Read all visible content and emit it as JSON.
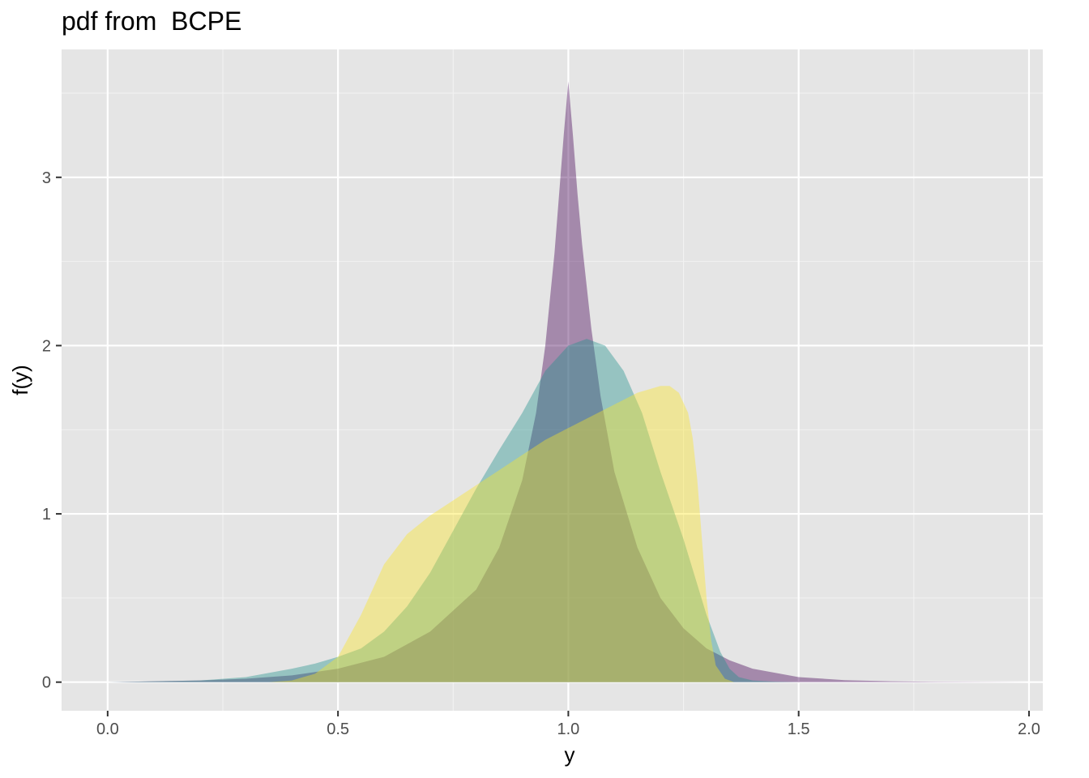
{
  "chart_data": {
    "type": "area",
    "title": "pdf from  BCPE",
    "xlabel": "y",
    "ylabel": "f(y)",
    "xlim": [
      -0.1,
      2.03
    ],
    "ylim": [
      -0.17,
      3.76
    ],
    "x_ticks": [
      0.0,
      0.5,
      1.0,
      1.5,
      2.0
    ],
    "x_tick_labels": [
      "0.0",
      "0.5",
      "1.0",
      "1.5",
      "2.0"
    ],
    "y_ticks": [
      0,
      1,
      2,
      3
    ],
    "y_tick_labels": [
      "0",
      "1",
      "2",
      "3"
    ],
    "grid": true,
    "legend": "none",
    "series": [
      {
        "color": "#440154",
        "opacity": 0.4,
        "x": [
          0.0,
          0.1,
          0.2,
          0.3,
          0.4,
          0.5,
          0.6,
          0.7,
          0.8,
          0.85,
          0.9,
          0.93,
          0.95,
          0.97,
          0.98,
          0.99,
          1.0,
          1.01,
          1.02,
          1.03,
          1.05,
          1.07,
          1.1,
          1.15,
          1.2,
          1.25,
          1.3,
          1.35,
          1.4,
          1.5,
          1.6,
          1.7,
          1.8,
          1.9,
          2.0
        ],
        "y": [
          0,
          0.005,
          0.01,
          0.02,
          0.04,
          0.08,
          0.15,
          0.3,
          0.55,
          0.8,
          1.2,
          1.6,
          2.0,
          2.55,
          2.9,
          3.25,
          3.57,
          3.25,
          2.9,
          2.6,
          2.1,
          1.7,
          1.25,
          0.8,
          0.5,
          0.32,
          0.2,
          0.13,
          0.08,
          0.03,
          0.012,
          0.005,
          0.002,
          0.001,
          0
        ]
      },
      {
        "color": "#21908C",
        "opacity": 0.4,
        "x": [
          0.0,
          0.2,
          0.3,
          0.4,
          0.45,
          0.5,
          0.55,
          0.6,
          0.65,
          0.7,
          0.75,
          0.8,
          0.85,
          0.9,
          0.95,
          1.0,
          1.04,
          1.08,
          1.12,
          1.16,
          1.2,
          1.25,
          1.3,
          1.33,
          1.35,
          1.37,
          1.4,
          1.45,
          1.5
        ],
        "y": [
          0,
          0.01,
          0.03,
          0.08,
          0.11,
          0.15,
          0.2,
          0.3,
          0.45,
          0.65,
          0.9,
          1.15,
          1.38,
          1.6,
          1.85,
          2.0,
          2.04,
          2.0,
          1.85,
          1.6,
          1.25,
          0.85,
          0.4,
          0.18,
          0.08,
          0.03,
          0.01,
          0.003,
          0
        ]
      },
      {
        "color": "#FDE725",
        "opacity": 0.4,
        "x": [
          0.35,
          0.4,
          0.45,
          0.5,
          0.55,
          0.6,
          0.65,
          0.7,
          0.75,
          0.8,
          0.85,
          0.9,
          0.95,
          1.0,
          1.05,
          1.1,
          1.15,
          1.2,
          1.22,
          1.24,
          1.26,
          1.27,
          1.28,
          1.29,
          1.3,
          1.31,
          1.32,
          1.34,
          1.36
        ],
        "y": [
          0,
          0.01,
          0.05,
          0.15,
          0.4,
          0.7,
          0.88,
          0.99,
          1.08,
          1.17,
          1.26,
          1.35,
          1.44,
          1.51,
          1.58,
          1.65,
          1.72,
          1.76,
          1.76,
          1.72,
          1.6,
          1.45,
          1.2,
          0.85,
          0.5,
          0.25,
          0.1,
          0.02,
          0
        ]
      }
    ]
  }
}
